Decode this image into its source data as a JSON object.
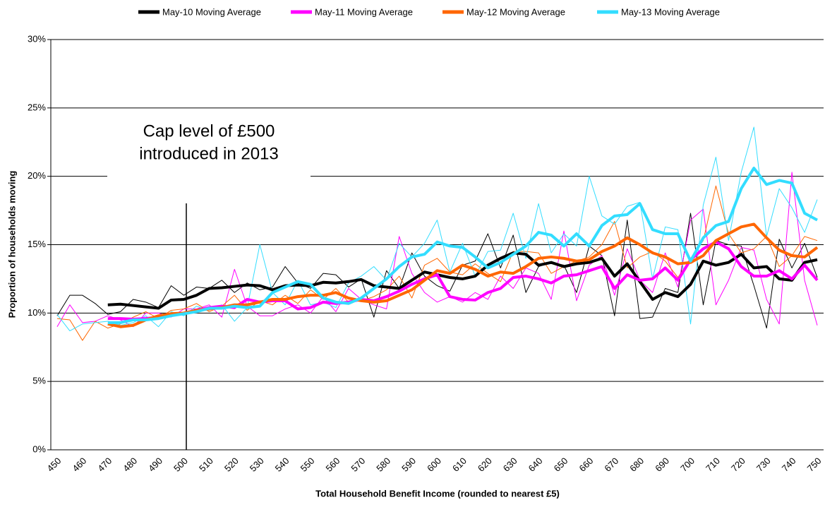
{
  "chart_data": {
    "type": "line",
    "x_label": "Total Household Benefit Income (rounded to nearest £5)",
    "y_label": "Proportion of households moving",
    "annotation": [
      "Cap level of £500",
      "introduced in 2013"
    ],
    "categories": [
      "450",
      null,
      "460",
      null,
      "470",
      null,
      "480",
      null,
      "490",
      null,
      "500",
      null,
      "510",
      null,
      "520",
      null,
      "530",
      null,
      "540",
      null,
      "550",
      null,
      "560",
      null,
      "570",
      null,
      "580",
      null,
      "590",
      null,
      "600",
      null,
      "610",
      null,
      "620",
      null,
      "630",
      null,
      "640",
      null,
      "650",
      null,
      "660",
      null,
      "670",
      null,
      "680",
      null,
      "690",
      null,
      "700",
      null,
      "710",
      null,
      "720",
      null,
      "730",
      null,
      "740",
      null,
      "750"
    ],
    "ylim": [
      0,
      30
    ],
    "yticks": [
      {
        "value": 0,
        "label": "0%"
      },
      {
        "value": 5,
        "label": "5%"
      },
      {
        "value": 10,
        "label": "10%"
      },
      {
        "value": 15,
        "label": "15%"
      },
      {
        "value": 20,
        "label": "20%"
      },
      {
        "value": 25,
        "label": "25%"
      },
      {
        "value": 30,
        "label": "30%"
      }
    ],
    "grid": true,
    "legend": "top",
    "raw_series": [
      {
        "color": "#000000",
        "values": [
          9.8,
          11.3,
          11.3,
          10.7,
          9.9,
          10.1,
          11.0,
          10.8,
          10.4,
          12.0,
          11.3,
          11.9,
          11.8,
          12.4,
          11.5,
          12.2,
          11.7,
          11.9,
          13.4,
          12.2,
          11.8,
          12.9,
          12.8,
          11.9,
          12.5,
          9.7,
          13.1,
          11.8,
          14.4,
          12.7,
          12.0,
          11.6,
          13.5,
          13.8,
          15.8,
          13.3,
          15.7,
          11.5,
          13.4,
          13.7,
          13.5,
          11.5,
          14.9,
          14.2,
          9.8,
          16.8,
          9.6,
          9.7,
          11.8,
          11.5,
          17.3,
          10.6,
          15.3,
          15.0,
          14.9,
          12.0,
          8.9,
          15.4,
          13.3,
          15.1,
          12.6
        ]
      },
      {
        "color": "#ff00ff",
        "values": [
          9.0,
          10.6,
          9.3,
          9.4,
          9.8,
          9.5,
          9.0,
          10.0,
          10.0,
          9.7,
          10.3,
          10.3,
          10.6,
          9.7,
          13.2,
          10.5,
          9.8,
          9.8,
          10.3,
          10.6,
          10.0,
          11.2,
          10.1,
          11.8,
          11.0,
          10.6,
          10.3,
          15.6,
          12.9,
          11.5,
          10.8,
          11.2,
          10.8,
          11.5,
          11.0,
          12.7,
          11.8,
          13.3,
          12.9,
          11.0,
          16.0,
          10.9,
          13.5,
          14.2,
          11.3,
          14.7,
          12.4,
          11.5,
          14.4,
          11.9,
          16.8,
          17.6,
          10.6,
          12.4,
          14.8,
          14.6,
          11.0,
          9.2,
          20.3,
          12.4,
          9.1
        ]
      },
      {
        "color": "#ff6600",
        "values": [
          9.6,
          9.5,
          8.0,
          9.4,
          8.9,
          9.2,
          9.7,
          10.1,
          9.6,
          10.2,
          10.3,
          10.7,
          10.1,
          10.5,
          11.3,
          10.2,
          10.9,
          10.6,
          11.3,
          10.7,
          11.7,
          11.0,
          11.8,
          10.8,
          10.9,
          11.2,
          11.7,
          12.7,
          11.1,
          13.5,
          14.0,
          13.0,
          12.8,
          13.6,
          12.9,
          12.3,
          14.5,
          14.5,
          14.4,
          12.9,
          13.4,
          13.8,
          14.1,
          15.0,
          16.7,
          13.3,
          14.1,
          14.5,
          13.8,
          12.6,
          14.0,
          15.3,
          19.3,
          15.8,
          14.4,
          14.7,
          15.6,
          13.4,
          14.2,
          15.6,
          15.3
        ]
      },
      {
        "color": "#33ddff",
        "values": [
          9.9,
          8.7,
          9.2,
          9.3,
          9.4,
          9.1,
          9.3,
          9.8,
          9.0,
          10.1,
          9.8,
          10.5,
          10.2,
          10.6,
          9.4,
          10.4,
          15.0,
          11.5,
          10.6,
          12.4,
          10.6,
          10.8,
          10.4,
          12.2,
          12.7,
          13.4,
          12.4,
          15.1,
          14.1,
          15.1,
          16.8,
          13.0,
          15.1,
          12.7,
          14.5,
          14.6,
          17.3,
          14.0,
          18.0,
          14.4,
          15.8,
          14.9,
          20.0,
          17.1,
          16.5,
          17.8,
          18.1,
          12.5,
          16.3,
          16.1,
          9.2,
          17.9,
          21.4,
          15.3,
          20.3,
          23.6,
          15.6,
          19.1,
          17.7,
          15.9,
          18.3
        ]
      }
    ],
    "series": [
      {
        "name": "May-10 Moving Average",
        "color": "#000000",
        "values": [
          null,
          null,
          null,
          null,
          10.6,
          10.65,
          10.55,
          10.45,
          10.35,
          10.95,
          11.0,
          11.3,
          11.8,
          11.85,
          11.95,
          12.05,
          12.0,
          11.7,
          12.0,
          12.05,
          12.0,
          12.25,
          12.2,
          12.3,
          12.45,
          12.0,
          11.9,
          11.8,
          12.4,
          13.0,
          12.8,
          12.6,
          12.5,
          12.7,
          13.5,
          14.0,
          14.4,
          14.3,
          13.5,
          13.7,
          13.4,
          13.6,
          13.7,
          14.0,
          12.7,
          13.6,
          12.3,
          11.0,
          11.5,
          11.2,
          12.1,
          13.8,
          13.5,
          13.7,
          14.3,
          13.3,
          13.4,
          12.5,
          12.4,
          13.7,
          13.9
        ]
      },
      {
        "name": "May-11 Moving Average",
        "color": "#ff00ff",
        "values": [
          null,
          null,
          null,
          null,
          9.6,
          9.6,
          9.55,
          9.6,
          9.7,
          9.9,
          10.0,
          10.2,
          10.4,
          10.5,
          10.4,
          11.0,
          10.8,
          10.9,
          10.9,
          10.3,
          10.4,
          10.8,
          10.7,
          10.8,
          11.0,
          10.9,
          11.2,
          11.6,
          12.1,
          12.5,
          12.8,
          11.2,
          11.0,
          10.95,
          11.5,
          11.8,
          12.6,
          12.7,
          12.5,
          12.2,
          12.7,
          12.8,
          13.1,
          13.4,
          11.8,
          12.8,
          12.4,
          12.5,
          13.3,
          12.4,
          13.9,
          14.7,
          15.2,
          14.7,
          13.4,
          12.7,
          12.7,
          13.1,
          12.5,
          13.5,
          12.4
        ]
      },
      {
        "name": "May-12 Moving Average",
        "color": "#ff6600",
        "values": [
          null,
          null,
          null,
          null,
          9.2,
          9.0,
          9.1,
          9.5,
          9.8,
          9.95,
          10.0,
          10.2,
          10.3,
          10.4,
          10.6,
          10.6,
          10.8,
          11.0,
          11.0,
          11.2,
          11.3,
          11.3,
          11.5,
          11.1,
          10.9,
          10.8,
          10.9,
          11.3,
          11.7,
          12.4,
          13.1,
          12.9,
          13.5,
          13.2,
          12.7,
          13.0,
          12.9,
          13.4,
          14.0,
          14.1,
          14.0,
          13.8,
          13.9,
          14.5,
          14.9,
          15.5,
          15.0,
          14.4,
          14.1,
          13.6,
          13.7,
          14.2,
          15.3,
          15.8,
          16.3,
          16.5,
          15.5,
          14.6,
          14.2,
          14.1,
          14.8
        ]
      },
      {
        "name": "May-13 Moving Average",
        "color": "#33ddff",
        "values": [
          null,
          null,
          null,
          null,
          9.3,
          9.3,
          9.5,
          9.5,
          9.6,
          9.8,
          9.95,
          10.1,
          10.35,
          10.35,
          10.5,
          10.4,
          10.5,
          11.5,
          11.9,
          12.3,
          12.1,
          11.1,
          10.8,
          10.7,
          11.1,
          11.8,
          12.5,
          13.4,
          14.1,
          14.3,
          15.2,
          14.9,
          14.8,
          14.1,
          13.3,
          13.7,
          14.3,
          14.9,
          15.9,
          15.7,
          14.9,
          15.8,
          14.9,
          16.4,
          17.1,
          17.2,
          18.0,
          16.1,
          15.8,
          15.8,
          13.8,
          15.5,
          16.4,
          16.7,
          19.1,
          20.6,
          19.4,
          19.7,
          19.5,
          17.3,
          16.8
        ]
      }
    ]
  }
}
